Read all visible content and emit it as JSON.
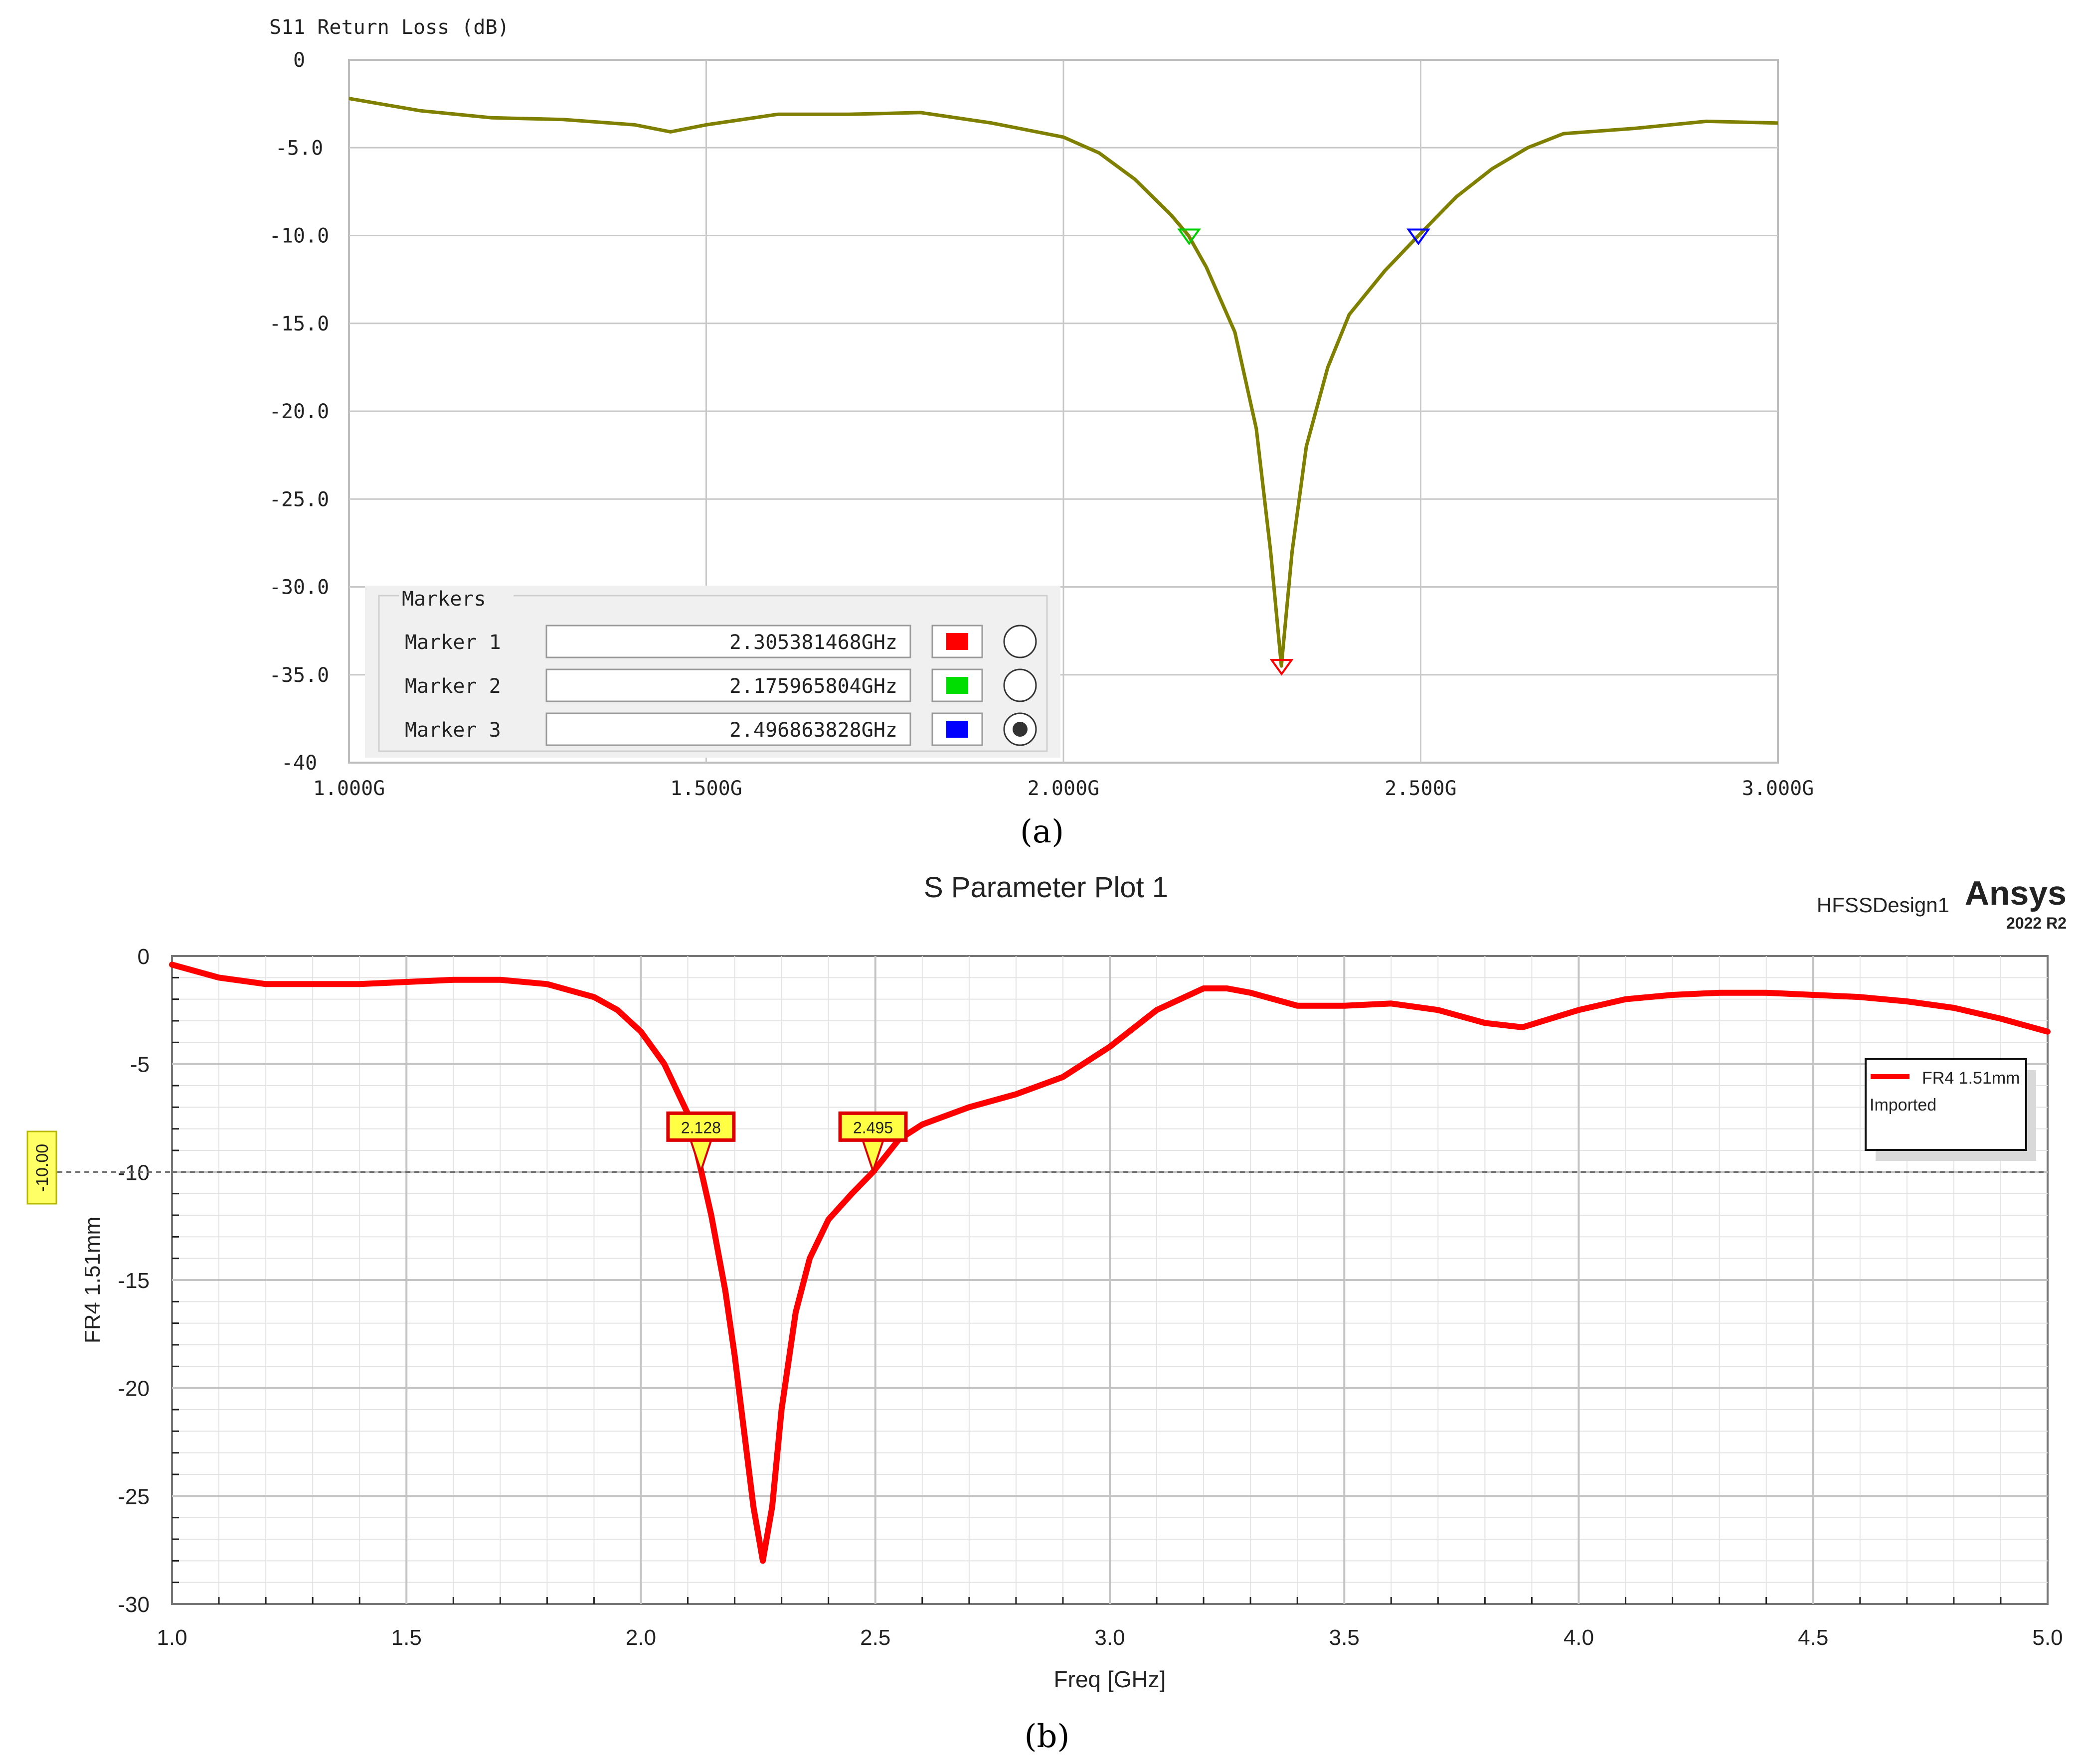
{
  "chart_data": [
    {
      "type": "line",
      "panel_caption": "(a)",
      "title": "S11 Return Loss (dB)",
      "xlabel": "",
      "ylabel": "",
      "xlim": [
        1.0,
        3.0
      ],
      "ylim": [
        -40,
        0
      ],
      "xticks": [
        1.0,
        1.5,
        2.0,
        2.5,
        3.0
      ],
      "xtick_labels": [
        "1.000G",
        "1.500G",
        "2.000G",
        "2.500G",
        "3.000G"
      ],
      "yticks": [
        0,
        -5,
        -10,
        -15,
        -20,
        -25,
        -30,
        -35,
        -40
      ],
      "ytick_labels": [
        "0",
        "-5.0",
        "-10.0",
        "-15.0",
        "-20.0",
        "-25.0",
        "-30.0",
        "-35.0",
        "-40"
      ],
      "grid": true,
      "line_color": "#7f7f00",
      "series": [
        {
          "name": "S11",
          "x": [
            1.0,
            1.1,
            1.2,
            1.3,
            1.4,
            1.45,
            1.5,
            1.6,
            1.7,
            1.8,
            1.9,
            2.0,
            2.05,
            2.1,
            2.15,
            2.175,
            2.2,
            2.24,
            2.27,
            2.29,
            2.305,
            2.32,
            2.34,
            2.37,
            2.4,
            2.45,
            2.497,
            2.55,
            2.6,
            2.65,
            2.7,
            2.8,
            2.9,
            3.0
          ],
          "y": [
            -2.2,
            -2.9,
            -3.3,
            -3.4,
            -3.7,
            -4.1,
            -3.7,
            -3.1,
            -3.1,
            -3.0,
            -3.6,
            -4.4,
            -5.3,
            -6.8,
            -8.8,
            -10.0,
            -11.8,
            -15.5,
            -21.0,
            -28.0,
            -34.5,
            -28.0,
            -22.0,
            -17.5,
            -14.5,
            -12.0,
            -10.0,
            -7.8,
            -6.2,
            -5.0,
            -4.2,
            -3.9,
            -3.5,
            -3.6
          ]
        }
      ],
      "legend": {
        "title": "Markers",
        "placement": "bottom-left",
        "items": [
          {
            "label": "Marker 1",
            "value": "2.305381468GHz",
            "color": "#ff0000",
            "selected": false
          },
          {
            "label": "Marker 2",
            "value": "2.175965804GHz",
            "color": "#00dd00",
            "selected": false
          },
          {
            "label": "Marker 3",
            "value": "2.496863828GHz",
            "color": "#0000ff",
            "selected": true
          }
        ]
      },
      "markers": [
        {
          "x": 2.305381468,
          "y": -34.5,
          "color": "#ff0000"
        },
        {
          "x": 2.175965804,
          "y": -10.0,
          "color": "#00cc00"
        },
        {
          "x": 2.496863828,
          "y": -10.0,
          "color": "#0000ff"
        }
      ]
    },
    {
      "type": "line",
      "panel_caption": "(b)",
      "title": "S Parameter Plot 1",
      "header_left": "HFSSDesign1",
      "brand": "Ansys",
      "brand_version": "2022 R2",
      "xlabel": "Freq [GHz]",
      "ylabel": "FR4 1.51mm",
      "xlim": [
        1.0,
        5.0
      ],
      "ylim": [
        -30,
        0
      ],
      "xticks": [
        1.0,
        1.5,
        2.0,
        2.5,
        3.0,
        3.5,
        4.0,
        4.5,
        5.0
      ],
      "xtick_labels": [
        "1.0",
        "1.5",
        "2.0",
        "2.5",
        "3.0",
        "3.5",
        "4.0",
        "4.5",
        "5.0"
      ],
      "yticks": [
        0,
        -5,
        -10,
        -15,
        -20,
        -25,
        -30
      ],
      "ytick_labels": [
        "0",
        "-5",
        "-10",
        "-15",
        "-20",
        "-25",
        "-30"
      ],
      "grid": true,
      "line_color": "#ff0000",
      "reference_line": {
        "y": -10.0,
        "label": "-10.00"
      },
      "series": [
        {
          "name": "FR4 1.51mm",
          "subtitle": "Imported",
          "x": [
            1.0,
            1.1,
            1.2,
            1.3,
            1.4,
            1.5,
            1.6,
            1.7,
            1.8,
            1.9,
            1.95,
            2.0,
            2.05,
            2.1,
            2.128,
            2.15,
            2.18,
            2.2,
            2.22,
            2.24,
            2.26,
            2.28,
            2.3,
            2.33,
            2.36,
            2.4,
            2.45,
            2.495,
            2.55,
            2.6,
            2.7,
            2.8,
            2.9,
            3.0,
            3.1,
            3.2,
            3.25,
            3.3,
            3.4,
            3.5,
            3.6,
            3.7,
            3.8,
            3.88,
            4.0,
            4.1,
            4.2,
            4.3,
            4.4,
            4.5,
            4.6,
            4.7,
            4.8,
            4.9,
            5.0
          ],
          "y": [
            -0.4,
            -1.0,
            -1.3,
            -1.3,
            -1.3,
            -1.2,
            -1.1,
            -1.1,
            -1.3,
            -1.9,
            -2.5,
            -3.5,
            -5.0,
            -7.3,
            -9.9,
            -12.0,
            -15.5,
            -18.5,
            -22.0,
            -25.5,
            -28.0,
            -25.5,
            -21.0,
            -16.5,
            -14.0,
            -12.2,
            -11.0,
            -10.0,
            -8.5,
            -7.8,
            -7.0,
            -6.4,
            -5.6,
            -4.2,
            -2.5,
            -1.5,
            -1.5,
            -1.7,
            -2.3,
            -2.3,
            -2.2,
            -2.5,
            -3.1,
            -3.3,
            -2.5,
            -2.0,
            -1.8,
            -1.7,
            -1.7,
            -1.8,
            -1.9,
            -2.1,
            -2.4,
            -2.9,
            -3.5
          ]
        }
      ],
      "legend": {
        "placement": "top-right",
        "items": [
          {
            "label": "FR4 1.51mm",
            "sublabel": "Imported",
            "color": "#ff0000"
          }
        ]
      },
      "markers": [
        {
          "x": 2.128,
          "y": -10.0,
          "label": "2.128"
        },
        {
          "x": 2.495,
          "y": -10.0,
          "label": "2.495"
        }
      ]
    }
  ]
}
